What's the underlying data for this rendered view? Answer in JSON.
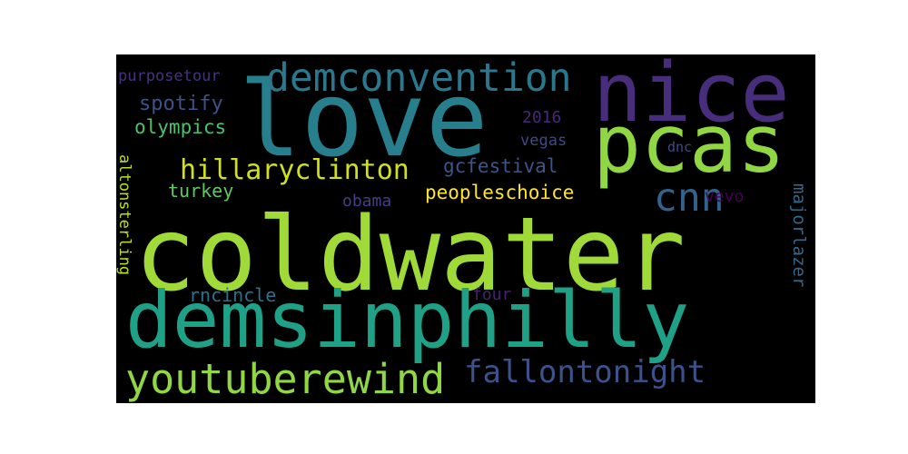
{
  "words": {
    "coldwater": {
      "text": "coldwater",
      "color": "#a0da39"
    },
    "demsinphilly": {
      "text": "demsinphilly",
      "color": "#1fa187"
    },
    "love": {
      "text": "love",
      "color": "#277f8e"
    },
    "nice": {
      "text": "nice",
      "color": "#472d7b"
    },
    "pcas": {
      "text": "pcas",
      "color": "#90d743"
    },
    "demconvention": {
      "text": "demconvention",
      "color": "#2a788e"
    },
    "youtuberewind": {
      "text": "youtuberewind",
      "color": "#90d743"
    },
    "fallontonight": {
      "text": "fallontonight",
      "color": "#3b528b"
    },
    "cnn": {
      "text": "cnn",
      "color": "#33638d"
    },
    "hillaryclinton": {
      "text": "hillaryclinton",
      "color": "#d0e11c"
    },
    "peopleschoice": {
      "text": "peopleschoice",
      "color": "#fde725"
    },
    "gcfestival": {
      "text": "gcfestival",
      "color": "#39568c"
    },
    "spotify": {
      "text": "spotify",
      "color": "#3b528b"
    },
    "olympics": {
      "text": "olympics",
      "color": "#4ac16d"
    },
    "turkey": {
      "text": "turkey",
      "color": "#5ec962"
    },
    "purposetour": {
      "text": "purposetour",
      "color": "#46327e"
    },
    "2016": {
      "text": "2016",
      "color": "#482878"
    },
    "vegas": {
      "text": "vegas",
      "color": "#3e4989"
    },
    "dnc": {
      "text": "dnc",
      "color": "#3e4989"
    },
    "obama": {
      "text": "obama",
      "color": "#433e85"
    },
    "vevo": {
      "text": "vevo",
      "color": "#440154"
    },
    "rncincle": {
      "text": "rncincle",
      "color": "#2c728e"
    },
    "four": {
      "text": "four",
      "color": "#482173"
    },
    "altonsterling": {
      "text": "altonsterling",
      "color": "#bddf26"
    },
    "majorlazer": {
      "text": "majorlazer",
      "color": "#31688e"
    }
  }
}
